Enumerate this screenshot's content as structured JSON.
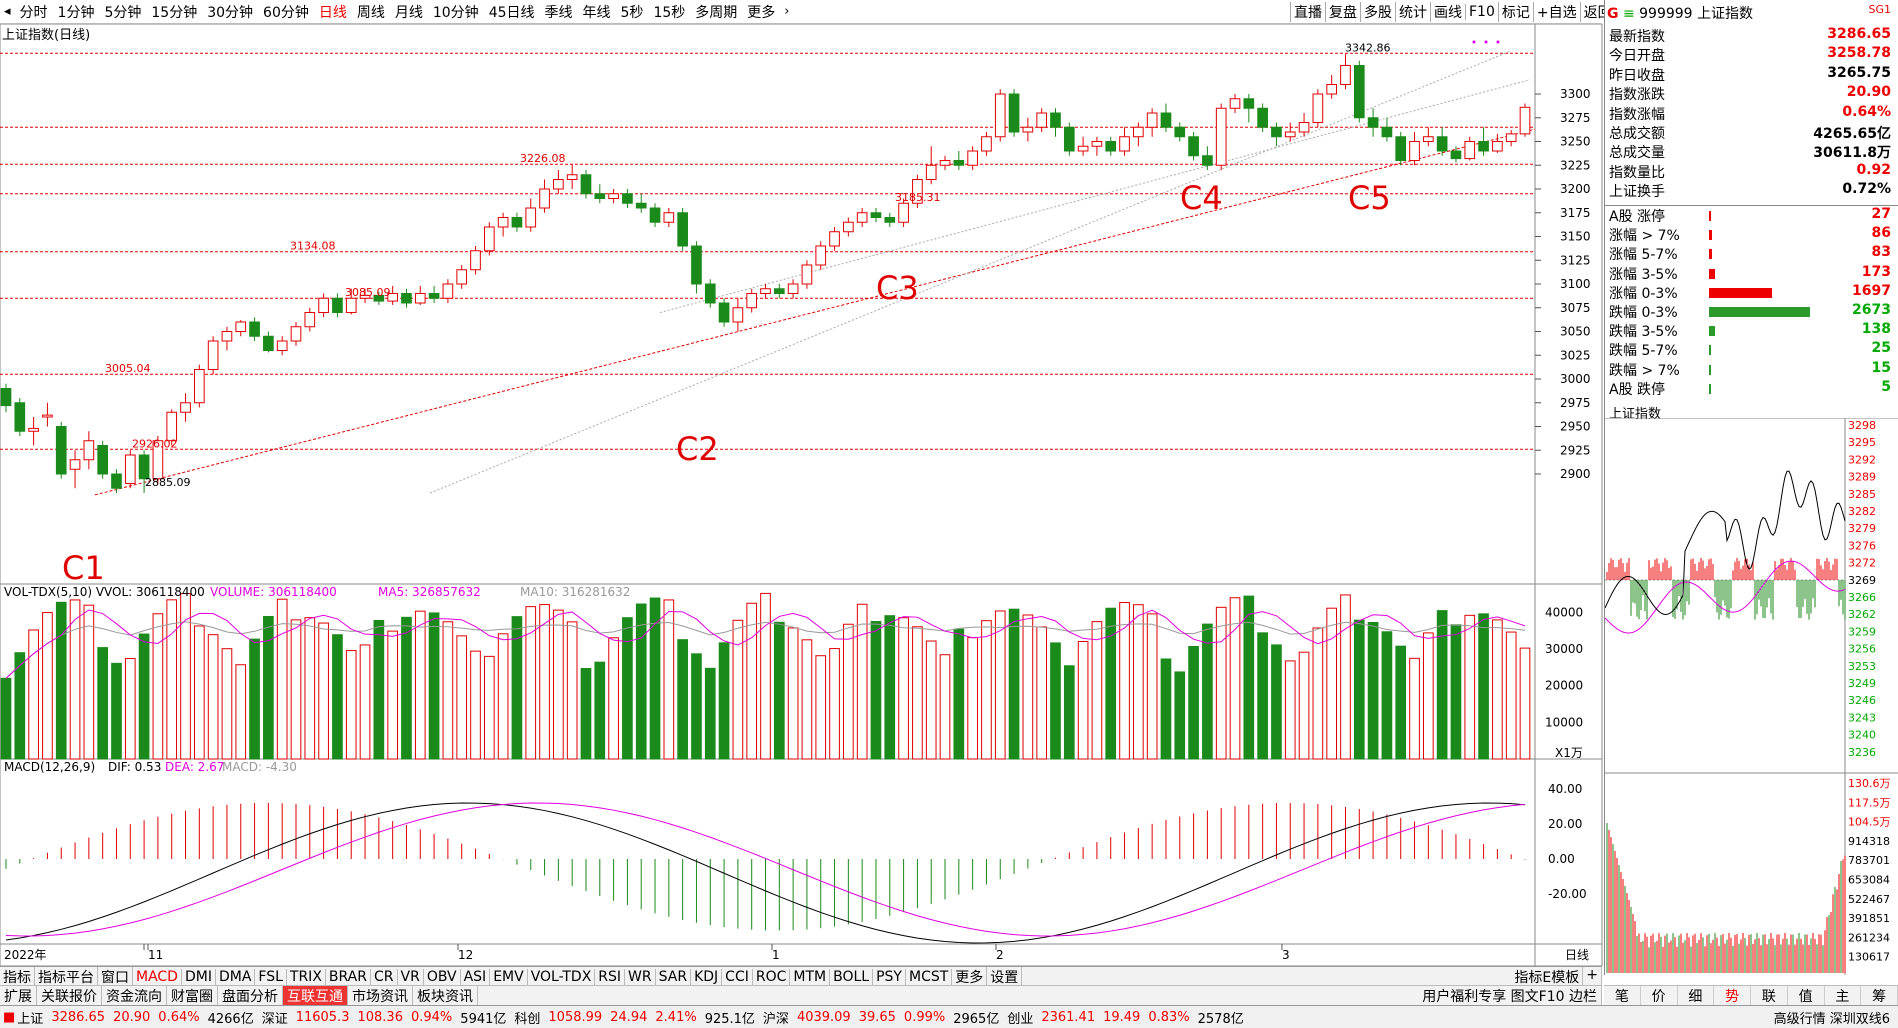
{
  "toolbar": {
    "periods": [
      "分时",
      "1分钟",
      "5分钟",
      "15分钟",
      "30分钟",
      "60分钟",
      "日线",
      "周线",
      "月线",
      "10分钟",
      "45日线",
      "季线",
      "年线",
      "5秒",
      "15秒",
      "多周期",
      "更多"
    ],
    "active_period": "日线",
    "right_tools": [
      "直播",
      "复盘",
      "多股",
      "统计",
      "画线",
      "F10",
      "标记",
      "+自选",
      "返回"
    ]
  },
  "chart": {
    "title": "上证指数(日线)",
    "y_ticks": [
      "3300",
      "3275",
      "3250",
      "3225",
      "3200",
      "3175",
      "3150",
      "3125",
      "3100",
      "3075",
      "3050",
      "3025",
      "3000",
      "2975",
      "2950",
      "2925",
      "2900"
    ],
    "price_labels": [
      "3342.86",
      "3226.08",
      "3134.08",
      "3085.09",
      "3005.04",
      "2926.02",
      "2885.09",
      "3185.31"
    ],
    "annotations": [
      "C1",
      "C2",
      "C3",
      "C4",
      "C5"
    ],
    "x_labels": [
      "2022年",
      "11",
      "12",
      "1",
      "2",
      "3"
    ],
    "period_label": "日线"
  },
  "volume": {
    "header": "VOL-TDX(5,10)  VVOL: 306118400",
    "volume_text": "VOLUME: 306118400",
    "ma5_text": "MA5: 326857632",
    "ma10_text": "MA10: 316281632",
    "y_ticks": [
      "40000",
      "30000",
      "20000",
      "10000"
    ],
    "unit": "X1万"
  },
  "macd": {
    "header": "MACD(12,26,9)",
    "dif_text": "DIF: 0.53",
    "dea_text": "DEA: 2.67",
    "macd_text": "MACD: -4.30",
    "y_ticks": [
      "40.00",
      "20.00",
      "0.00",
      "-20.00"
    ]
  },
  "right_panel": {
    "code": "999999",
    "name": "上证指数",
    "badge": "SG1",
    "stats": [
      {
        "label": "最新指数",
        "value": "3286.65",
        "color": "red"
      },
      {
        "label": "今日开盘",
        "value": "3258.78",
        "color": "red"
      },
      {
        "label": "昨日收盘",
        "value": "3265.75",
        "color": "black"
      },
      {
        "label": "指数涨跌",
        "value": "20.90",
        "color": "red"
      },
      {
        "label": "指数涨幅",
        "value": "0.64%",
        "color": "red"
      },
      {
        "label": "总成交额",
        "value": "4265.65亿",
        "color": "black"
      },
      {
        "label": "总成交量",
        "value": "30611.8万",
        "color": "black"
      },
      {
        "label": "指数量比",
        "value": "0.92",
        "color": "red"
      },
      {
        "label": "上证换手",
        "value": "0.72%",
        "color": "black"
      }
    ],
    "breadth": [
      {
        "label": "A股 涨停",
        "value": "27",
        "color": "red",
        "bar": 0.01
      },
      {
        "label": "涨幅 > 7%",
        "value": "86",
        "color": "red",
        "bar": 0.02
      },
      {
        "label": "涨幅 5-7%",
        "value": "83",
        "color": "red",
        "bar": 0.02
      },
      {
        "label": "涨幅 3-5%",
        "value": "173",
        "color": "red",
        "bar": 0.04
      },
      {
        "label": "涨幅 0-3%",
        "value": "1697",
        "color": "red",
        "bar": 0.45
      },
      {
        "label": "跌幅 0-3%",
        "value": "2673",
        "color": "grn",
        "bar": 0.72
      },
      {
        "label": "跌幅 3-5%",
        "value": "138",
        "color": "grn",
        "bar": 0.04
      },
      {
        "label": "跌幅 5-7%",
        "value": "25",
        "color": "grn",
        "bar": 0.01
      },
      {
        "label": "跌幅 > 7%",
        "value": "15",
        "color": "grn",
        "bar": 0.01
      },
      {
        "label": "A股 跌停",
        "value": "5",
        "color": "grn",
        "bar": 0.01
      }
    ],
    "intraday_title": "上证指数",
    "intraday_price_ticks": [
      "3298",
      "3295",
      "3292",
      "3289",
      "3285",
      "3282",
      "3279",
      "3276",
      "3272",
      "3269",
      "3266",
      "3262",
      "3259",
      "3256",
      "3253",
      "3249",
      "3246",
      "3243",
      "3240",
      "3236"
    ],
    "intraday_vol_ticks": [
      "130.6万",
      "117.5万",
      "104.5万",
      "914318",
      "783701",
      "653084",
      "522467",
      "391851",
      "261234",
      "130617"
    ]
  },
  "tabs_row1": [
    "指标",
    "指标平台",
    "窗口",
    "MACD",
    "DMI",
    "DMA",
    "FSL",
    "TRIX",
    "BRAR",
    "CR",
    "VR",
    "OBV",
    "ASI",
    "EMV",
    "VOL-TDX",
    "RSI",
    "WR",
    "SAR",
    "KDJ",
    "CCI",
    "ROC",
    "MTM",
    "BOLL",
    "PSY",
    "MCST",
    "更多",
    "设置"
  ],
  "tabs_row1_active": "MACD",
  "tabs_row1_right": [
    "指标E模板",
    "+"
  ],
  "tabs_row2": [
    "扩展",
    "关联报价",
    "资金流向",
    "财富圈",
    "盘面分析",
    "互联互通",
    "市场资讯",
    "板块资讯"
  ],
  "tabs_row2_active": "互联互通",
  "tabs_row2_right": "用户福利专享 图文F10 边栏",
  "rp_tabs": [
    "笔",
    "价",
    "细",
    "势",
    "联",
    "值",
    "主",
    "筹"
  ],
  "rp_tabs_active": "势",
  "status": {
    "sh_label": "上证",
    "sh_value": "3286.65",
    "sh_change": "20.90",
    "sh_pct": "0.64%",
    "sh_amount": "4266亿",
    "sz_label": "深证",
    "sz_value": "11605.3",
    "sz_change": "108.36",
    "sz_pct": "0.94%",
    "sz_amount": "5941亿",
    "kc_label": "科创",
    "kc_value": "1058.99",
    "kc_change": "24.94",
    "kc_pct": "2.41%",
    "kc_amount": "925.1亿",
    "hs_label": "沪深",
    "hs_value": "4039.09",
    "hs_change": "39.65",
    "hs_pct": "0.99%",
    "hs_amount": "2965亿",
    "cy_label": "创业",
    "cy_value": "2361.41",
    "cy_change": "19.49",
    "cy_pct": "0.83%",
    "cy_amount": "2578亿",
    "right_text": "高级行情 深圳双线6"
  },
  "colors": {
    "up": "#e00000",
    "down": "#1a8a1a",
    "dash": "#e00000",
    "ma5": "#e000e0",
    "ma10": "#999999"
  }
}
